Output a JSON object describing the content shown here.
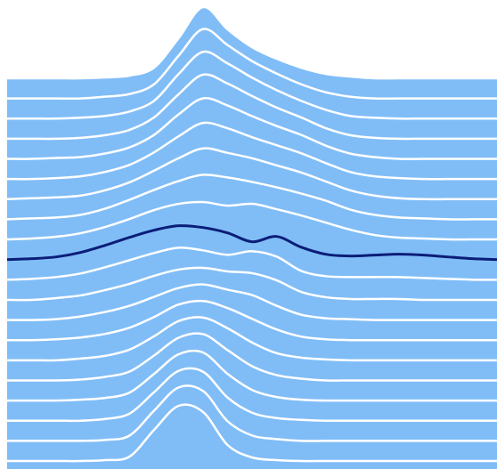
{
  "chart_data": {
    "type": "ridgeline",
    "x": [
      0,
      5,
      10,
      15,
      20,
      25,
      30,
      35,
      40,
      45,
      50,
      55,
      60,
      65,
      70,
      75,
      80,
      85,
      90,
      95,
      100
    ],
    "xlim": [
      0,
      100
    ],
    "ylim": [
      0,
      100
    ],
    "series": [
      {
        "color": "#80bdf7",
        "values": [
          0,
          0,
          0,
          0,
          1,
          3,
          12,
          45,
          80,
          55,
          35,
          22,
          12,
          5,
          2,
          0,
          0,
          0,
          0,
          0,
          0
        ]
      },
      {
        "color": "#80bdf7",
        "values": [
          0,
          0,
          0,
          0,
          2,
          5,
          16,
          48,
          78,
          60,
          42,
          28,
          16,
          7,
          2,
          0,
          0,
          0,
          0,
          0,
          0
        ]
      },
      {
        "color": "#80bdf7",
        "values": [
          0,
          0,
          0,
          1,
          3,
          8,
          20,
          50,
          75,
          62,
          46,
          32,
          20,
          10,
          3,
          1,
          0,
          0,
          0,
          0,
          0
        ]
      },
      {
        "color": "#80bdf7",
        "values": [
          0,
          0,
          0,
          1,
          4,
          10,
          24,
          50,
          72,
          62,
          48,
          35,
          24,
          12,
          4,
          1,
          0,
          0,
          0,
          0,
          0
        ]
      },
      {
        "color": "#80bdf7",
        "values": [
          0,
          0,
          1,
          2,
          6,
          13,
          27,
          50,
          68,
          60,
          48,
          37,
          27,
          15,
          6,
          2,
          0,
          0,
          0,
          0,
          0
        ]
      },
      {
        "color": "#80bdf7",
        "values": [
          0,
          0,
          1,
          3,
          8,
          16,
          30,
          48,
          63,
          57,
          47,
          38,
          29,
          18,
          8,
          3,
          1,
          0,
          0,
          0,
          0
        ]
      },
      {
        "color": "#80bdf7",
        "values": [
          0,
          1,
          2,
          4,
          10,
          19,
          32,
          46,
          57,
          52,
          46,
          38,
          30,
          20,
          10,
          4,
          1,
          0,
          0,
          0,
          0
        ]
      },
      {
        "color": "#80bdf7",
        "values": [
          0,
          1,
          2,
          5,
          12,
          22,
          33,
          43,
          50,
          47,
          42,
          36,
          29,
          21,
          11,
          5,
          2,
          1,
          0,
          0,
          0
        ]
      },
      {
        "color": "#80bdf7",
        "values": [
          0,
          1,
          3,
          7,
          14,
          23,
          33,
          40,
          42,
          38,
          40,
          34,
          27,
          19,
          11,
          5,
          2,
          1,
          0,
          0,
          0
        ]
      },
      {
        "color": "#80bdf7",
        "line_color": "#0b1d78",
        "values": [
          0,
          1,
          3,
          8,
          16,
          25,
          33,
          38,
          36,
          30,
          20,
          26,
          14,
          6,
          4,
          5,
          6,
          5,
          3,
          1,
          0
        ]
      },
      {
        "color": "#80bdf7",
        "values": [
          0,
          1,
          3,
          7,
          14,
          22,
          30,
          36,
          33,
          28,
          32,
          26,
          10,
          4,
          3,
          3,
          3,
          2,
          1,
          0,
          0
        ]
      },
      {
        "color": "#80bdf7",
        "values": [
          0,
          0,
          2,
          5,
          11,
          18,
          27,
          34,
          36,
          32,
          30,
          22,
          9,
          3,
          1,
          1,
          1,
          0,
          0,
          0,
          0
        ]
      },
      {
        "color": "#80bdf7",
        "values": [
          0,
          0,
          1,
          4,
          9,
          16,
          26,
          36,
          40,
          34,
          28,
          16,
          6,
          2,
          1,
          0,
          0,
          0,
          0,
          0,
          0
        ]
      },
      {
        "color": "#80bdf7",
        "values": [
          0,
          0,
          1,
          3,
          7,
          14,
          26,
          40,
          44,
          36,
          24,
          12,
          4,
          1,
          0,
          0,
          0,
          0,
          0,
          0,
          0
        ]
      },
      {
        "color": "#80bdf7",
        "values": [
          0,
          0,
          0,
          2,
          5,
          12,
          27,
          44,
          48,
          36,
          20,
          8,
          3,
          1,
          0,
          0,
          0,
          0,
          0,
          0,
          0
        ]
      },
      {
        "color": "#80bdf7",
        "values": [
          0,
          0,
          0,
          1,
          4,
          10,
          28,
          48,
          52,
          34,
          16,
          6,
          2,
          0,
          0,
          0,
          0,
          0,
          0,
          0,
          0
        ]
      },
      {
        "color": "#80bdf7",
        "values": [
          0,
          0,
          0,
          1,
          3,
          9,
          30,
          52,
          54,
          30,
          12,
          4,
          1,
          0,
          0,
          0,
          0,
          0,
          0,
          0,
          0
        ]
      },
      {
        "color": "#80bdf7",
        "values": [
          0,
          0,
          0,
          0,
          2,
          8,
          32,
          56,
          55,
          26,
          9,
          3,
          1,
          0,
          0,
          0,
          0,
          0,
          0,
          0,
          0
        ]
      },
      {
        "color": "#80bdf7",
        "values": [
          0,
          0,
          0,
          0,
          1,
          6,
          34,
          60,
          56,
          22,
          6,
          2,
          0,
          0,
          0,
          0,
          0,
          0,
          0,
          0,
          0
        ]
      },
      {
        "color": "#80bdf7",
        "values": [
          0,
          0,
          0,
          0,
          1,
          5,
          35,
          62,
          55,
          18,
          4,
          1,
          0,
          0,
          0,
          0,
          0,
          0,
          0,
          0,
          0
        ]
      }
    ]
  }
}
